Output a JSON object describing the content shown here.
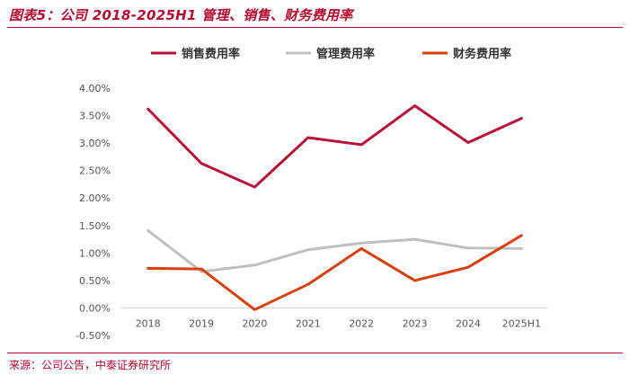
{
  "title": "图表5：公司 2018-2025H1 管理、销售、财务费用率",
  "source": "来源：公司公告，中泰证券研究所",
  "chart_data": {
    "type": "line",
    "categories": [
      "2018",
      "2019",
      "2020",
      "2021",
      "2022",
      "2023",
      "2024",
      "2025H1"
    ],
    "ylim": [
      -0.5,
      4.0
    ],
    "yticks": [
      "4.00%",
      "3.50%",
      "3.00%",
      "2.50%",
      "2.00%",
      "1.50%",
      "1.00%",
      "0.50%",
      "0.00%",
      "-0.50%"
    ],
    "yunit": "%",
    "legend_position": "top",
    "grid": false,
    "series": [
      {
        "name": "销售费用率",
        "color": "#b5123a",
        "values": [
          3.62,
          2.63,
          2.2,
          3.1,
          2.97,
          3.68,
          3.01,
          3.45
        ]
      },
      {
        "name": "管理费用率",
        "color": "#bfbfbf",
        "values": [
          1.41,
          0.66,
          0.78,
          1.06,
          1.18,
          1.25,
          1.09,
          1.08
        ]
      },
      {
        "name": "财务费用率",
        "color": "#d9400f",
        "values": [
          0.72,
          0.71,
          -0.03,
          0.43,
          1.08,
          0.5,
          0.74,
          1.32
        ]
      }
    ]
  }
}
